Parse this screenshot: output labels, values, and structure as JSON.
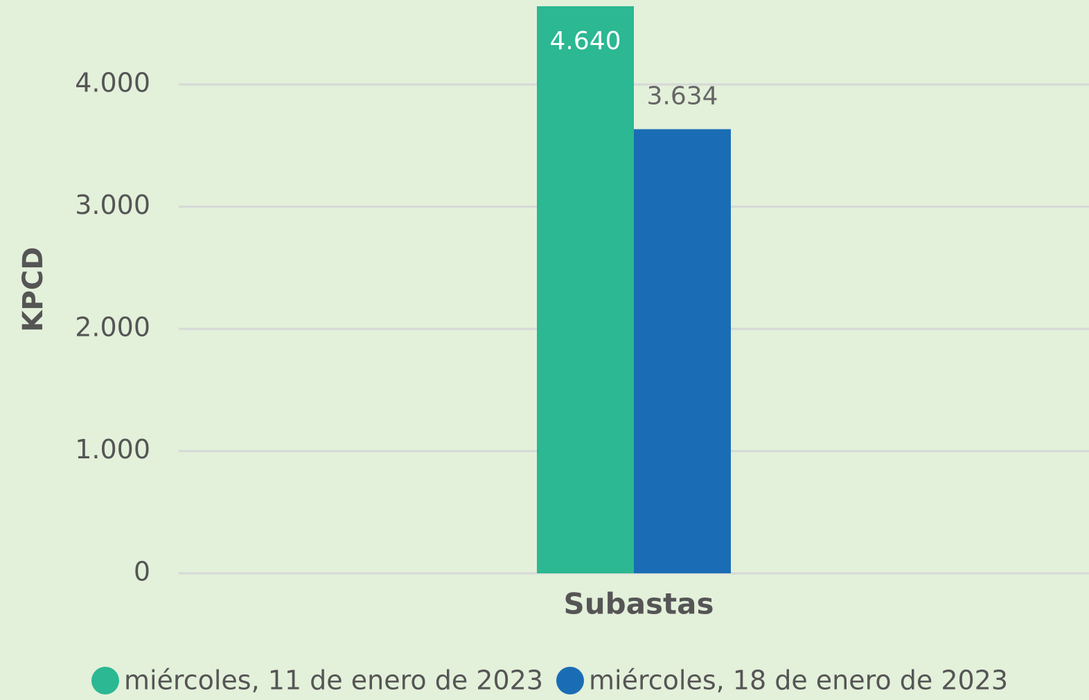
{
  "chart_data": {
    "type": "bar",
    "y_label": "KPCD",
    "categories": [
      "Subastas"
    ],
    "series": [
      {
        "name": "miércoles, 11 de enero de 2023",
        "color": "#2bb892",
        "values": [
          4640
        ],
        "value_labels": [
          "4.640"
        ]
      },
      {
        "name": "miércoles, 18 de enero de 2023",
        "color": "#1a6db5",
        "values": [
          3634
        ],
        "value_labels": [
          "3.634"
        ]
      }
    ],
    "ylim": [
      0,
      4640
    ],
    "yticks": [
      0,
      {
        "value": 1000,
        "label": "1.000"
      },
      {
        "value": 2000,
        "label": "2.000"
      },
      {
        "value": 3000,
        "label": "3.000"
      },
      {
        "value": 4000,
        "label": "4.000"
      }
    ],
    "grid": true,
    "legend": "bottom"
  }
}
